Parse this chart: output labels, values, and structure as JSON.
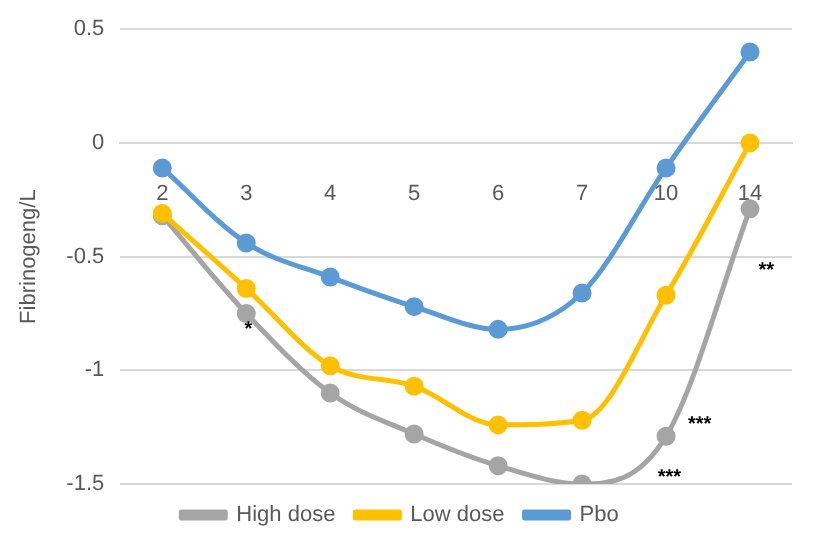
{
  "chart_data": {
    "type": "line",
    "ylabel": "Fibrinogeng/L",
    "categories": [
      "2",
      "3",
      "4",
      "5",
      "6",
      "7",
      "10",
      "14"
    ],
    "series": [
      {
        "name": "High dose",
        "color": "#a5a5a5",
        "values": [
          -0.32,
          -0.75,
          -1.1,
          -1.28,
          -1.42,
          -1.5,
          -1.29,
          -0.29
        ]
      },
      {
        "name": "Low dose",
        "color": "#ffc000",
        "values": [
          -0.31,
          -0.64,
          -0.98,
          -1.07,
          -1.24,
          -1.22,
          -0.67,
          0
        ]
      },
      {
        "name": "Pbo",
        "color": "#5b9bd5",
        "values": [
          -0.11,
          -0.44,
          -0.59,
          -0.72,
          -0.82,
          -0.66,
          -0.11,
          0.4
        ]
      }
    ],
    "ylim": [
      -1.5,
      0.5
    ],
    "yticks": [
      -1.5,
      -1,
      -0.5,
      0,
      0.5
    ],
    "grid": "y",
    "legend": "bottom",
    "marker": "circle",
    "line_style": "solid",
    "annotations": [
      "*",
      "***",
      "***",
      "**"
    ]
  }
}
